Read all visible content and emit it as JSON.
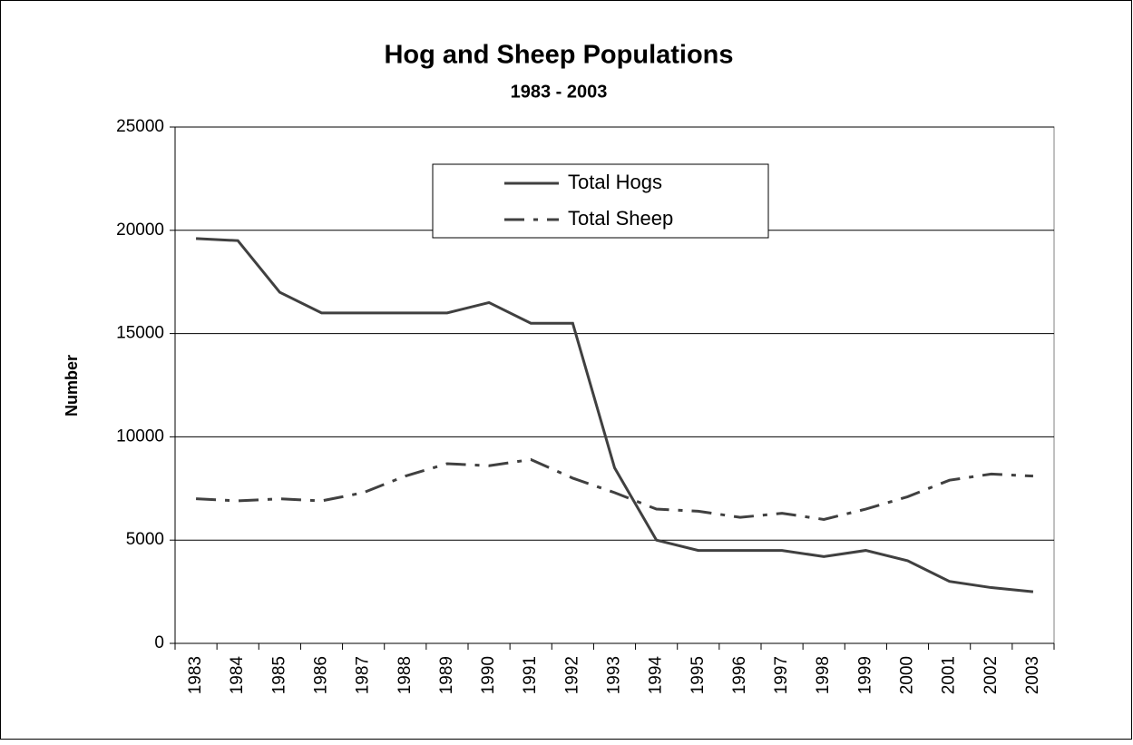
{
  "chart_data": {
    "type": "line",
    "title": "Hog and Sheep Populations",
    "subtitle": "1983 - 2003",
    "y_label": "Number",
    "categories": [
      "1983",
      "1984",
      "1985",
      "1986",
      "1987",
      "1988",
      "1989",
      "1990",
      "1991",
      "1992",
      "1993",
      "1994",
      "1995",
      "1996",
      "1997",
      "1998",
      "1999",
      "2000",
      "2001",
      "2002",
      "2003"
    ],
    "series": [
      {
        "name": "Total Hogs",
        "color": "#404040",
        "dash": "solid",
        "values": [
          19600,
          19500,
          17000,
          16000,
          16000,
          16000,
          16000,
          16500,
          15500,
          15500,
          8500,
          5000,
          4500,
          4500,
          4500,
          4200,
          4500,
          4000,
          3000,
          2700,
          2500
        ]
      },
      {
        "name": "Total Sheep",
        "color": "#404040",
        "dash": "dashdot",
        "values": [
          7000,
          6900,
          7000,
          6900,
          7300,
          8100,
          8700,
          8600,
          8900,
          8000,
          7300,
          6500,
          6400,
          6100,
          6300,
          6000,
          6500,
          7100,
          7900,
          8200,
          8100
        ]
      }
    ],
    "ylim": [
      0,
      25000
    ],
    "yticks": [
      0,
      5000,
      10000,
      15000,
      20000,
      25000
    ],
    "grid": true,
    "legend": "top-center"
  }
}
